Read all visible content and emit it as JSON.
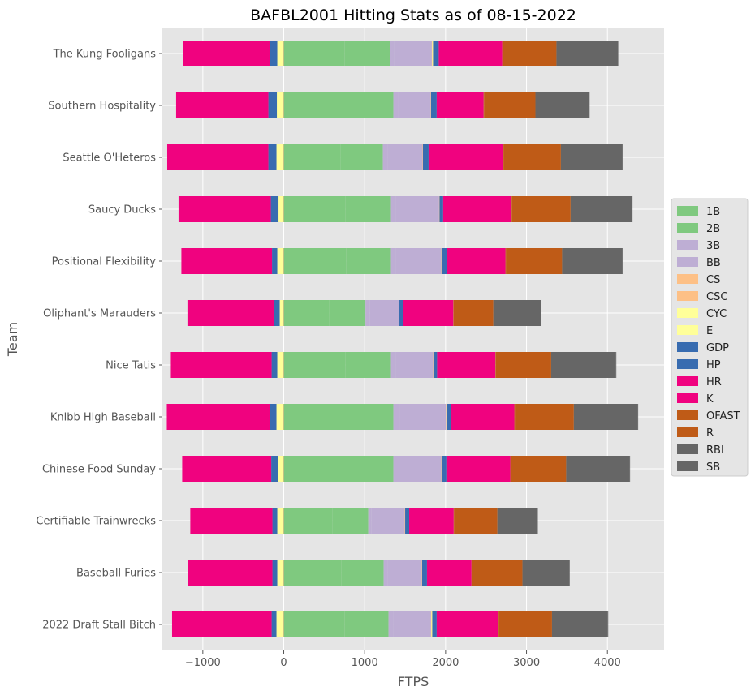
{
  "chart_data": {
    "type": "bar",
    "orientation": "horizontal",
    "stacked": true,
    "title": "BAFBL2001 Hitting Stats as of 08-15-2022",
    "xlabel": "FTPS",
    "ylabel": "Team",
    "xlim": [
      -1500,
      4700
    ],
    "xticks": [
      -1000,
      0,
      1000,
      2000,
      3000,
      4000
    ],
    "xtick_labels": [
      "−1000",
      "0",
      "1000",
      "2000",
      "3000",
      "4000"
    ],
    "grid": true,
    "legend_position": "center-right",
    "categories": [
      "2022 Draft Stall Bitch",
      "Baseball Furies",
      "Certifiable Trainwrecks",
      "Chinese Food Sunday",
      "Knibb High Baseball",
      "Nice Tatis",
      "Oliphant's Marauders",
      "Positional Flexibility",
      "Saucy Ducks",
      "Seattle O'Heteros",
      "Southern Hospitality",
      "The Kung Fooligans"
    ],
    "series": [
      {
        "name": "1B",
        "color": "#7fc97f",
        "values": [
          750,
          710,
          600,
          780,
          780,
          760,
          560,
          770,
          760,
          700,
          780,
          750
        ]
      },
      {
        "name": "2B",
        "color": "#7fc97f",
        "values": [
          545,
          525,
          445,
          575,
          575,
          565,
          450,
          555,
          565,
          525,
          575,
          560
        ]
      },
      {
        "name": "3B",
        "color": "#beaed4",
        "values": [
          60,
          50,
          40,
          70,
          80,
          60,
          50,
          60,
          60,
          55,
          60,
          55
        ]
      },
      {
        "name": "BB",
        "color": "#beaed4",
        "values": [
          465,
          420,
          410,
          520,
          570,
          460,
          360,
          560,
          535,
          435,
          400,
          465
        ]
      },
      {
        "name": "CS",
        "color": "#fdc086",
        "values": [
          -10,
          -10,
          -10,
          -10,
          -10,
          -10,
          -10,
          -10,
          -10,
          -10,
          -10,
          -10
        ]
      },
      {
        "name": "CSC",
        "color": "#fdc086",
        "values": [
          5,
          5,
          5,
          5,
          5,
          5,
          5,
          5,
          5,
          5,
          5,
          5
        ]
      },
      {
        "name": "CYC",
        "color": "#ffff99",
        "values": [
          10,
          0,
          0,
          0,
          10,
          0,
          0,
          0,
          0,
          0,
          0,
          10
        ]
      },
      {
        "name": "E",
        "color": "#ffff99",
        "values": [
          -80,
          -70,
          -70,
          -60,
          -80,
          -70,
          -40,
          -70,
          -55,
          -80,
          -75,
          -70
        ]
      },
      {
        "name": "GDP",
        "color": "#386cb0",
        "values": [
          -60,
          -60,
          -60,
          -85,
          -85,
          -70,
          -70,
          -65,
          -95,
          -100,
          -105,
          -90
        ]
      },
      {
        "name": "HP",
        "color": "#386cb0",
        "values": [
          55,
          60,
          50,
          60,
          50,
          45,
          45,
          65,
          45,
          70,
          70,
          70
        ]
      },
      {
        "name": "HR",
        "color": "#f0027f",
        "values": [
          760,
          550,
          550,
          790,
          780,
          720,
          625,
          725,
          845,
          920,
          580,
          785
        ]
      },
      {
        "name": "K",
        "color": "#f0027f",
        "values": [
          -1230,
          -1040,
          -1015,
          -1100,
          -1270,
          -1245,
          -1070,
          -1120,
          -1140,
          -1250,
          -1140,
          -1070
        ]
      },
      {
        "name": "OFAST",
        "color": "#bf5b17",
        "values": [
          5,
          5,
          5,
          5,
          5,
          5,
          5,
          5,
          5,
          5,
          5,
          5
        ]
      },
      {
        "name": "R",
        "color": "#bf5b17",
        "values": [
          660,
          625,
          535,
          685,
          730,
          685,
          490,
          695,
          725,
          710,
          635,
          665
        ]
      },
      {
        "name": "RBI",
        "color": "#666666",
        "values": [
          690,
          580,
          495,
          785,
          790,
          800,
          580,
          745,
          760,
          760,
          665,
          760
        ]
      },
      {
        "name": "SB",
        "color": "#666666",
        "values": [
          5,
          5,
          5,
          5,
          5,
          5,
          5,
          5,
          5,
          5,
          5,
          5
        ]
      }
    ]
  }
}
